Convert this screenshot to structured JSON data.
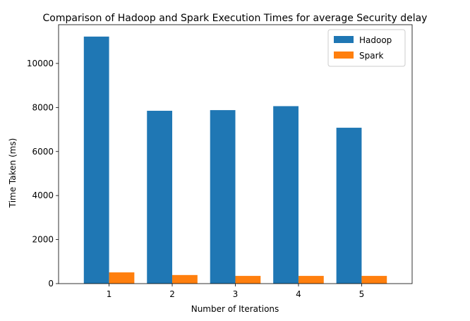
{
  "chart_data": {
    "type": "bar",
    "title": "Comparison of Hadoop and Spark Execution Times for average Security delay",
    "xlabel": "Number of Iterations",
    "ylabel": "Time Taken (ms)",
    "categories": [
      "1",
      "2",
      "3",
      "4",
      "5"
    ],
    "ylim": [
      0,
      11760
    ],
    "yticks": [
      0,
      2000,
      4000,
      6000,
      8000,
      10000
    ],
    "grid": false,
    "legend_position": "top-right",
    "series": [
      {
        "name": "Hadoop",
        "color": "#1f77b4",
        "values": [
          11220,
          7850,
          7880,
          8060,
          7080
        ]
      },
      {
        "name": "Spark",
        "color": "#ff7f0e",
        "values": [
          510,
          390,
          350,
          350,
          350
        ]
      }
    ]
  }
}
